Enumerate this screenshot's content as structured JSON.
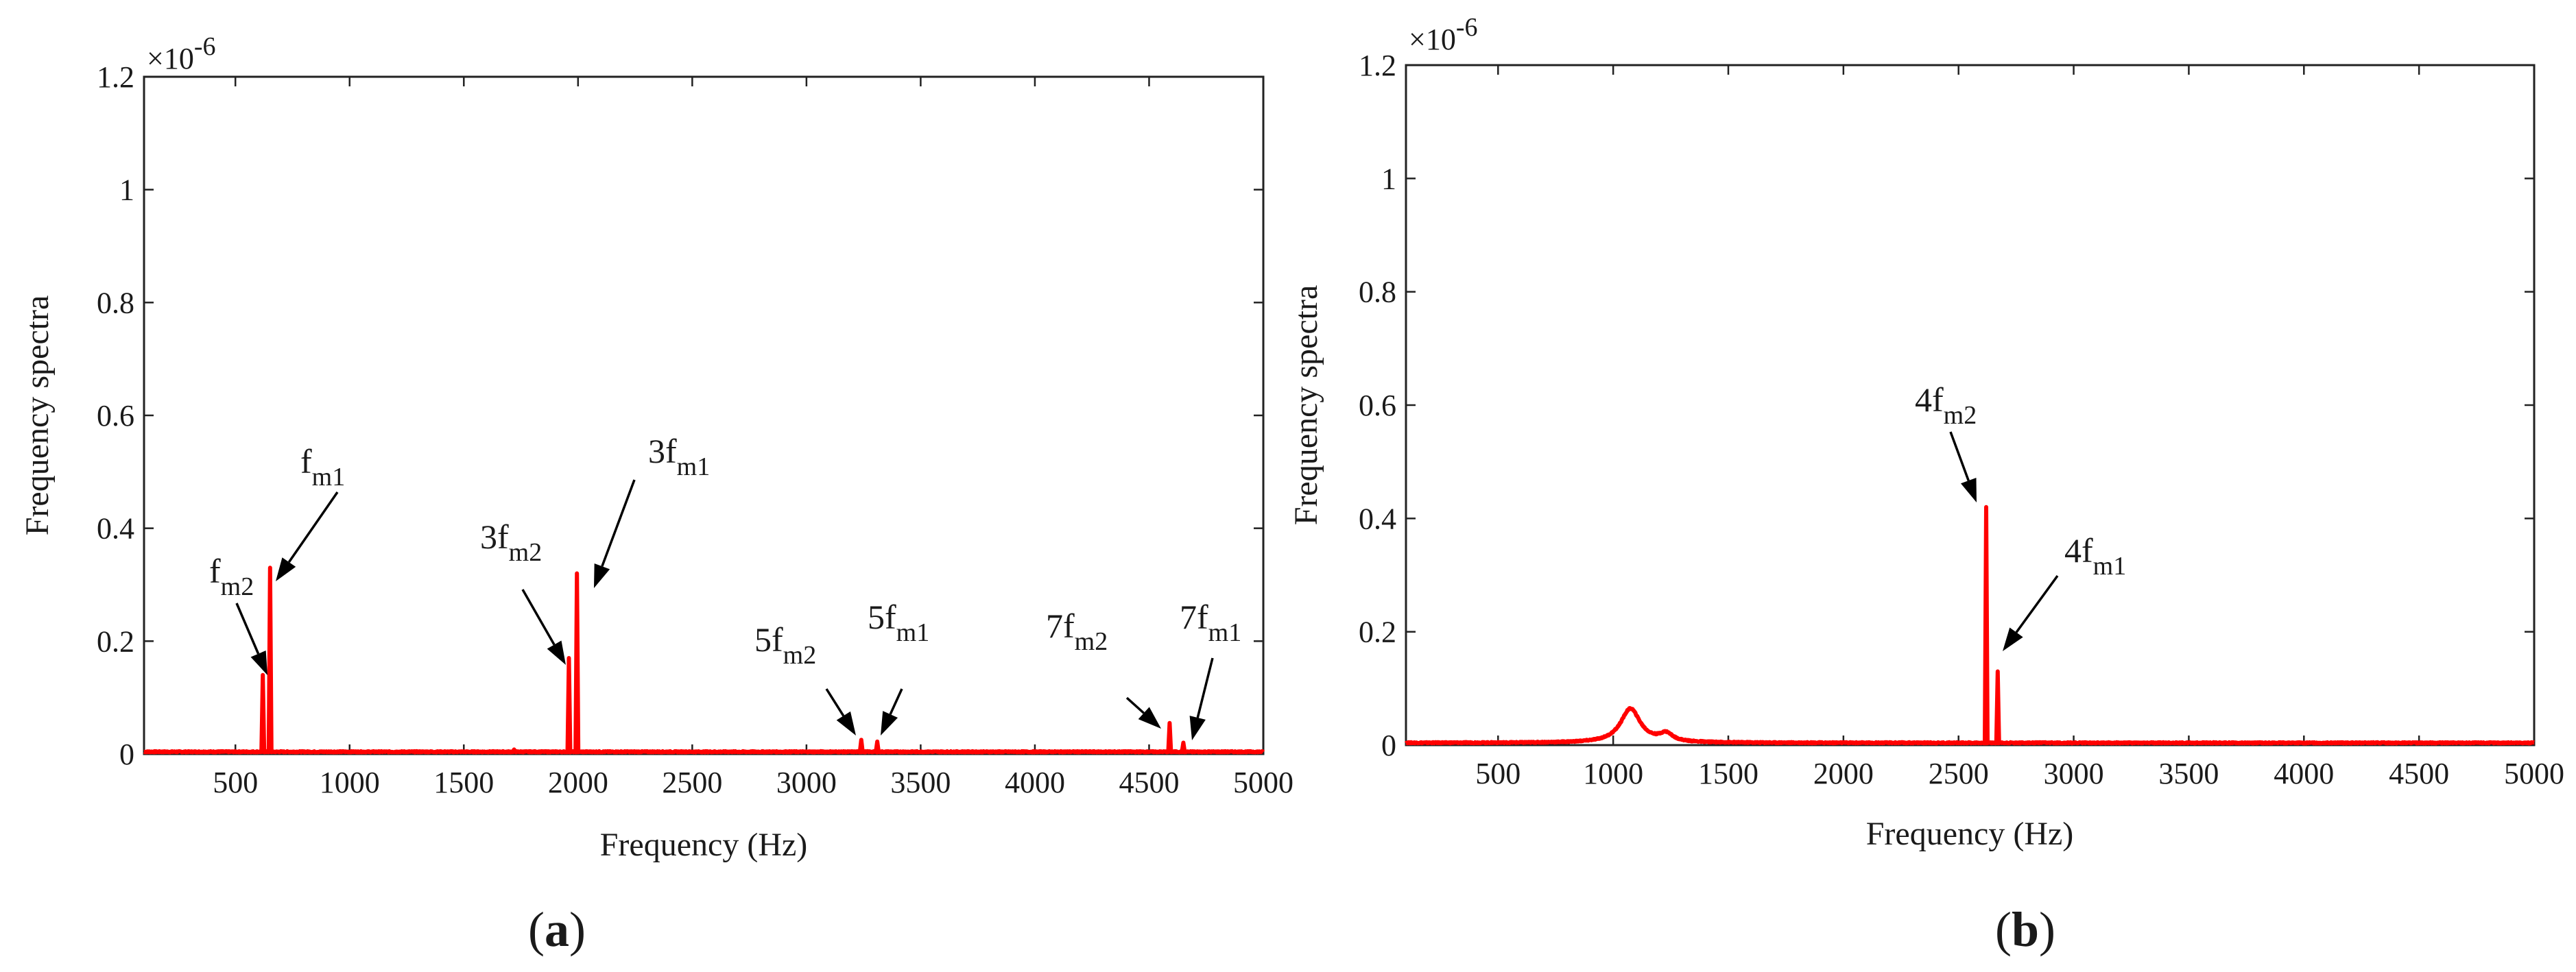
{
  "chart_data": [
    {
      "type": "line",
      "panel_label": "(a)",
      "panel_letter": "a",
      "xlabel": "Frequency (Hz)",
      "ylabel": "Frequency spectra",
      "y_exponent_label": "×10",
      "y_exponent_power": "-6",
      "xlim": [
        100,
        5000
      ],
      "ylim": [
        0,
        1.2
      ],
      "x_ticks": [
        500,
        1000,
        1500,
        2000,
        2500,
        3000,
        3500,
        4000,
        4500,
        5000
      ],
      "x_tick_labels": [
        "500",
        "1000",
        "1500",
        "2000",
        "2500",
        "3000",
        "3500",
        "4000",
        "4500",
        "5000"
      ],
      "y_ticks": [
        0,
        0.2,
        0.4,
        0.6,
        0.8,
        1,
        1.2
      ],
      "y_tick_labels": [
        "0",
        "0.2",
        "0.4",
        "0.6",
        "0.8",
        "1",
        "1.2"
      ],
      "series": [
        {
          "name": "spectrum",
          "color": "#ff0000",
          "baseline": 0.004,
          "peaks": [
            {
              "x": 620,
              "y": 0.14
            },
            {
              "x": 652,
              "y": 0.33
            },
            {
              "x": 1720,
              "y": 0.008
            },
            {
              "x": 1960,
              "y": 0.17
            },
            {
              "x": 1995,
              "y": 0.32
            },
            {
              "x": 3240,
              "y": 0.025
            },
            {
              "x": 3310,
              "y": 0.022
            },
            {
              "x": 4590,
              "y": 0.055
            },
            {
              "x": 4650,
              "y": 0.02
            }
          ]
        }
      ],
      "annotations": [
        {
          "main": "f",
          "sub": "m2",
          "x": 620,
          "y": 0.14
        },
        {
          "main": "f",
          "sub": "m1",
          "x": 652,
          "y": 0.3
        },
        {
          "main": "3f",
          "sub": "m2",
          "x": 1960,
          "y": 0.16
        },
        {
          "main": "3f",
          "sub": "m1",
          "x": 2000,
          "y": 0.28
        },
        {
          "main": "5f",
          "sub": "m2",
          "x": 3240,
          "y": 0.03
        },
        {
          "main": "5f",
          "sub": "m1",
          "x": 3310,
          "y": 0.02
        },
        {
          "main": "7f",
          "sub": "m2",
          "x": 4590,
          "y": 0.05
        },
        {
          "main": "7f",
          "sub": "m1",
          "x": 4660,
          "y": 0.02
        }
      ]
    },
    {
      "type": "line",
      "panel_label": "(b)",
      "panel_letter": "b",
      "xlabel": "Frequency (Hz)",
      "ylabel": "Frequency spectra",
      "y_exponent_label": "×10",
      "y_exponent_power": "-6",
      "xlim": [
        100,
        5000
      ],
      "ylim": [
        0,
        1.2
      ],
      "x_ticks": [
        500,
        1000,
        1500,
        2000,
        2500,
        3000,
        3500,
        4000,
        4500,
        5000
      ],
      "x_tick_labels": [
        "500",
        "1000",
        "1500",
        "2000",
        "2500",
        "3000",
        "3500",
        "4000",
        "4500",
        "5000"
      ],
      "y_ticks": [
        0,
        0.2,
        0.4,
        0.6,
        0.8,
        1,
        1.2
      ],
      "y_tick_labels": [
        "0",
        "0.2",
        "0.4",
        "0.6",
        "0.8",
        "1",
        "1.2"
      ],
      "series": [
        {
          "name": "spectrum",
          "color": "#ff0000",
          "baseline": 0.004,
          "bumps": [
            {
              "x": 1075,
              "y": 0.06,
              "width": 90
            },
            {
              "x": 1230,
              "y": 0.014,
              "width": 60
            }
          ],
          "peaks": [
            {
              "x": 2620,
              "y": 0.42
            },
            {
              "x": 2670,
              "y": 0.13
            }
          ]
        }
      ],
      "annotations": [
        {
          "main": "4f",
          "sub": "m2",
          "x": 2620,
          "y": 0.42
        },
        {
          "main": "4f",
          "sub": "m1",
          "x": 2670,
          "y": 0.13
        }
      ]
    }
  ]
}
